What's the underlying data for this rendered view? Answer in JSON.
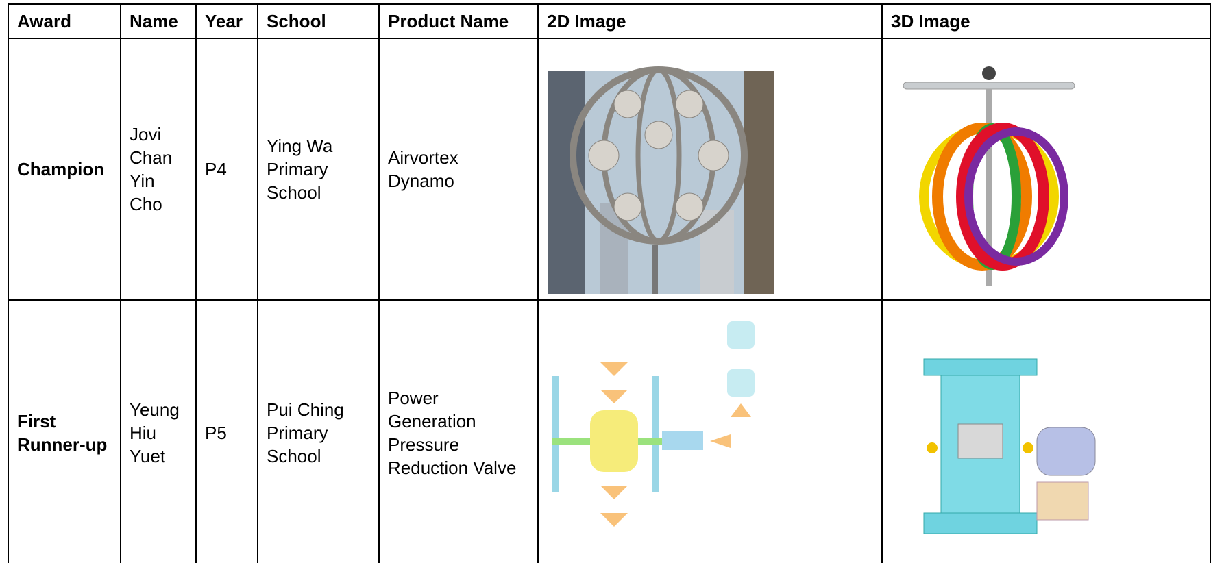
{
  "table": {
    "header": [
      "Award",
      "Name",
      "Year",
      "School",
      "Product Name",
      "2D Image",
      "3D Image"
    ],
    "rows": [
      [
        "Champion",
        "Jovi Chan Yin Cho",
        "P4",
        "Ying Wa Primary School",
        "Airvortex Dynamo"
      ],
      [
        "First Runner-up",
        "Yeung Hiu Yuet",
        "P5",
        "Pui Ching Primary School",
        "Power Generation Pressure Reduction Valve"
      ]
    ]
  }
}
